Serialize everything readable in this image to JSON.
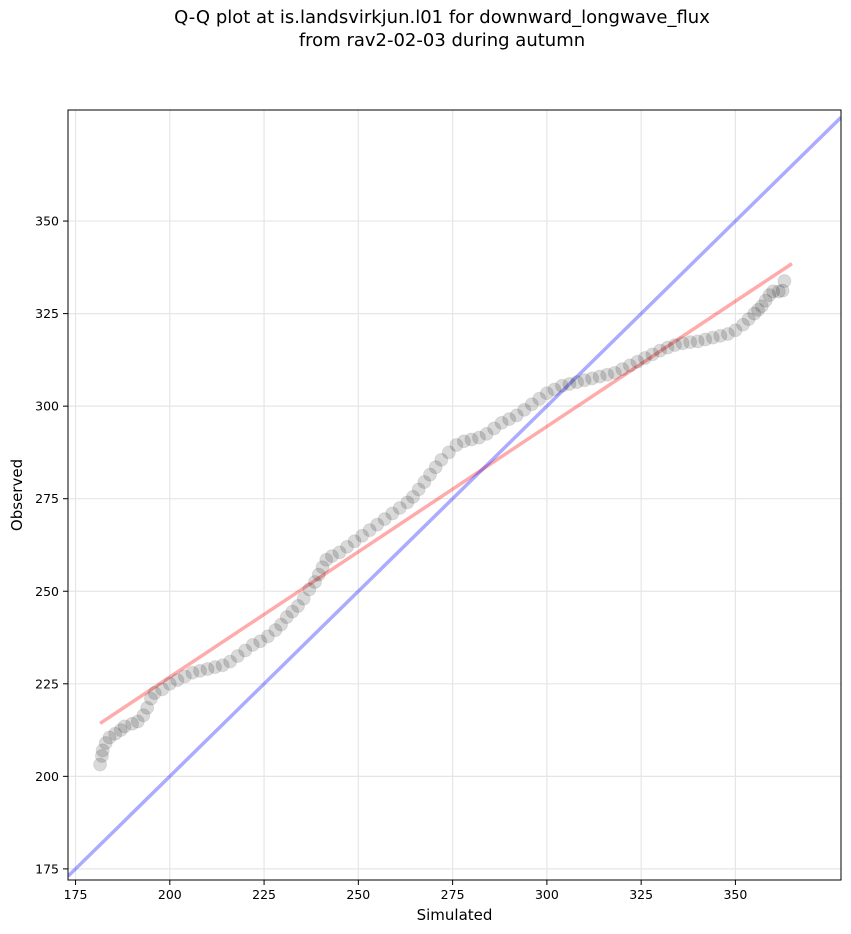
{
  "chart_data": {
    "type": "scatter",
    "title": "Q-Q plot at is.landsvirkjun.l01 for downward_longwave_flux",
    "subtitle": "from rav2-02-03 during autumn",
    "xlabel": "Simulated",
    "ylabel": "Observed",
    "xlim": [
      173,
      378
    ],
    "ylim": [
      172,
      380
    ],
    "x_ticks": [
      175,
      200,
      225,
      250,
      275,
      300,
      325,
      350
    ],
    "y_ticks": [
      175,
      200,
      225,
      250,
      275,
      300,
      325,
      350
    ],
    "grid": true,
    "legend": "none",
    "series": [
      {
        "role": "quantiles",
        "color": "#000000",
        "points": [
          [
            181.5,
            203.2
          ],
          [
            182.0,
            205.5
          ],
          [
            182.2,
            207.0
          ],
          [
            183.0,
            209.0
          ],
          [
            184.0,
            210.5
          ],
          [
            185.5,
            211.5
          ],
          [
            187.0,
            212.5
          ],
          [
            188.0,
            213.5
          ],
          [
            190.0,
            214.2
          ],
          [
            191.5,
            214.8
          ],
          [
            193.0,
            216.5
          ],
          [
            194.0,
            218.5
          ],
          [
            195.0,
            221.0
          ],
          [
            196.0,
            222.5
          ],
          [
            198.0,
            223.5
          ],
          [
            200.0,
            225.0
          ],
          [
            202.0,
            226.0
          ],
          [
            204.0,
            227.0
          ],
          [
            206.0,
            228.0
          ],
          [
            208.0,
            228.5
          ],
          [
            210.0,
            229.0
          ],
          [
            212.0,
            229.5
          ],
          [
            214.0,
            230.0
          ],
          [
            216.0,
            231.0
          ],
          [
            218.0,
            232.5
          ],
          [
            220.0,
            234.0
          ],
          [
            222.0,
            235.5
          ],
          [
            224.0,
            236.5
          ],
          [
            226.0,
            237.8
          ],
          [
            228.0,
            239.5
          ],
          [
            229.5,
            241.0
          ],
          [
            231.0,
            243.0
          ],
          [
            232.5,
            244.5
          ],
          [
            234.0,
            246.0
          ],
          [
            235.5,
            248.0
          ],
          [
            237.0,
            250.5
          ],
          [
            238.5,
            252.5
          ],
          [
            239.5,
            254.5
          ],
          [
            240.5,
            256.5
          ],
          [
            241.5,
            258.5
          ],
          [
            243.0,
            259.5
          ],
          [
            245.0,
            260.5
          ],
          [
            247.0,
            262.0
          ],
          [
            249.0,
            263.5
          ],
          [
            251.0,
            265.0
          ],
          [
            253.0,
            266.5
          ],
          [
            255.0,
            268.0
          ],
          [
            257.0,
            269.5
          ],
          [
            259.0,
            271.0
          ],
          [
            261.0,
            272.5
          ],
          [
            263.0,
            274.0
          ],
          [
            264.5,
            275.5
          ],
          [
            266.0,
            277.5
          ],
          [
            267.5,
            279.5
          ],
          [
            269.0,
            281.5
          ],
          [
            270.5,
            283.5
          ],
          [
            272.0,
            285.5
          ],
          [
            274.0,
            287.5
          ],
          [
            276.0,
            289.5
          ],
          [
            278.0,
            290.5
          ],
          [
            280.0,
            291.0
          ],
          [
            282.0,
            291.5
          ],
          [
            284.0,
            292.5
          ],
          [
            286.0,
            294.0
          ],
          [
            288.0,
            295.5
          ],
          [
            290.0,
            296.5
          ],
          [
            292.0,
            297.5
          ],
          [
            294.0,
            299.0
          ],
          [
            296.0,
            300.5
          ],
          [
            298.0,
            302.0
          ],
          [
            300.0,
            303.5
          ],
          [
            302.0,
            304.5
          ],
          [
            304.0,
            305.5
          ],
          [
            306.0,
            306.0
          ],
          [
            308.0,
            306.5
          ],
          [
            310.0,
            307.0
          ],
          [
            312.0,
            307.5
          ],
          [
            314.0,
            308.0
          ],
          [
            316.0,
            308.5
          ],
          [
            318.0,
            309.0
          ],
          [
            320.0,
            310.0
          ],
          [
            322.0,
            311.0
          ],
          [
            324.0,
            312.0
          ],
          [
            326.0,
            313.0
          ],
          [
            328.0,
            314.0
          ],
          [
            330.0,
            315.0
          ],
          [
            332.0,
            315.8
          ],
          [
            334.0,
            316.5
          ],
          [
            336.0,
            317.0
          ],
          [
            338.0,
            317.3
          ],
          [
            340.0,
            317.5
          ],
          [
            342.0,
            318.0
          ],
          [
            344.0,
            318.5
          ],
          [
            346.0,
            319.0
          ],
          [
            348.0,
            319.5
          ],
          [
            350.0,
            320.5
          ],
          [
            352.0,
            322.0
          ],
          [
            353.5,
            323.5
          ],
          [
            355.0,
            325.0
          ],
          [
            356.0,
            326.0
          ],
          [
            357.0,
            327.0
          ],
          [
            358.0,
            328.5
          ],
          [
            359.0,
            330.0
          ],
          [
            360.0,
            331.0
          ],
          [
            361.5,
            331.0
          ],
          [
            362.5,
            331.2
          ],
          [
            363.0,
            333.8
          ]
        ]
      },
      {
        "role": "fit-line",
        "color": "#ff0000",
        "points": [
          [
            181.5,
            214.3
          ],
          [
            365.0,
            338.5
          ]
        ]
      },
      {
        "role": "identity-line",
        "color": "#0000ff",
        "points": [
          [
            173,
            173
          ],
          [
            378,
            378
          ]
        ]
      }
    ]
  }
}
